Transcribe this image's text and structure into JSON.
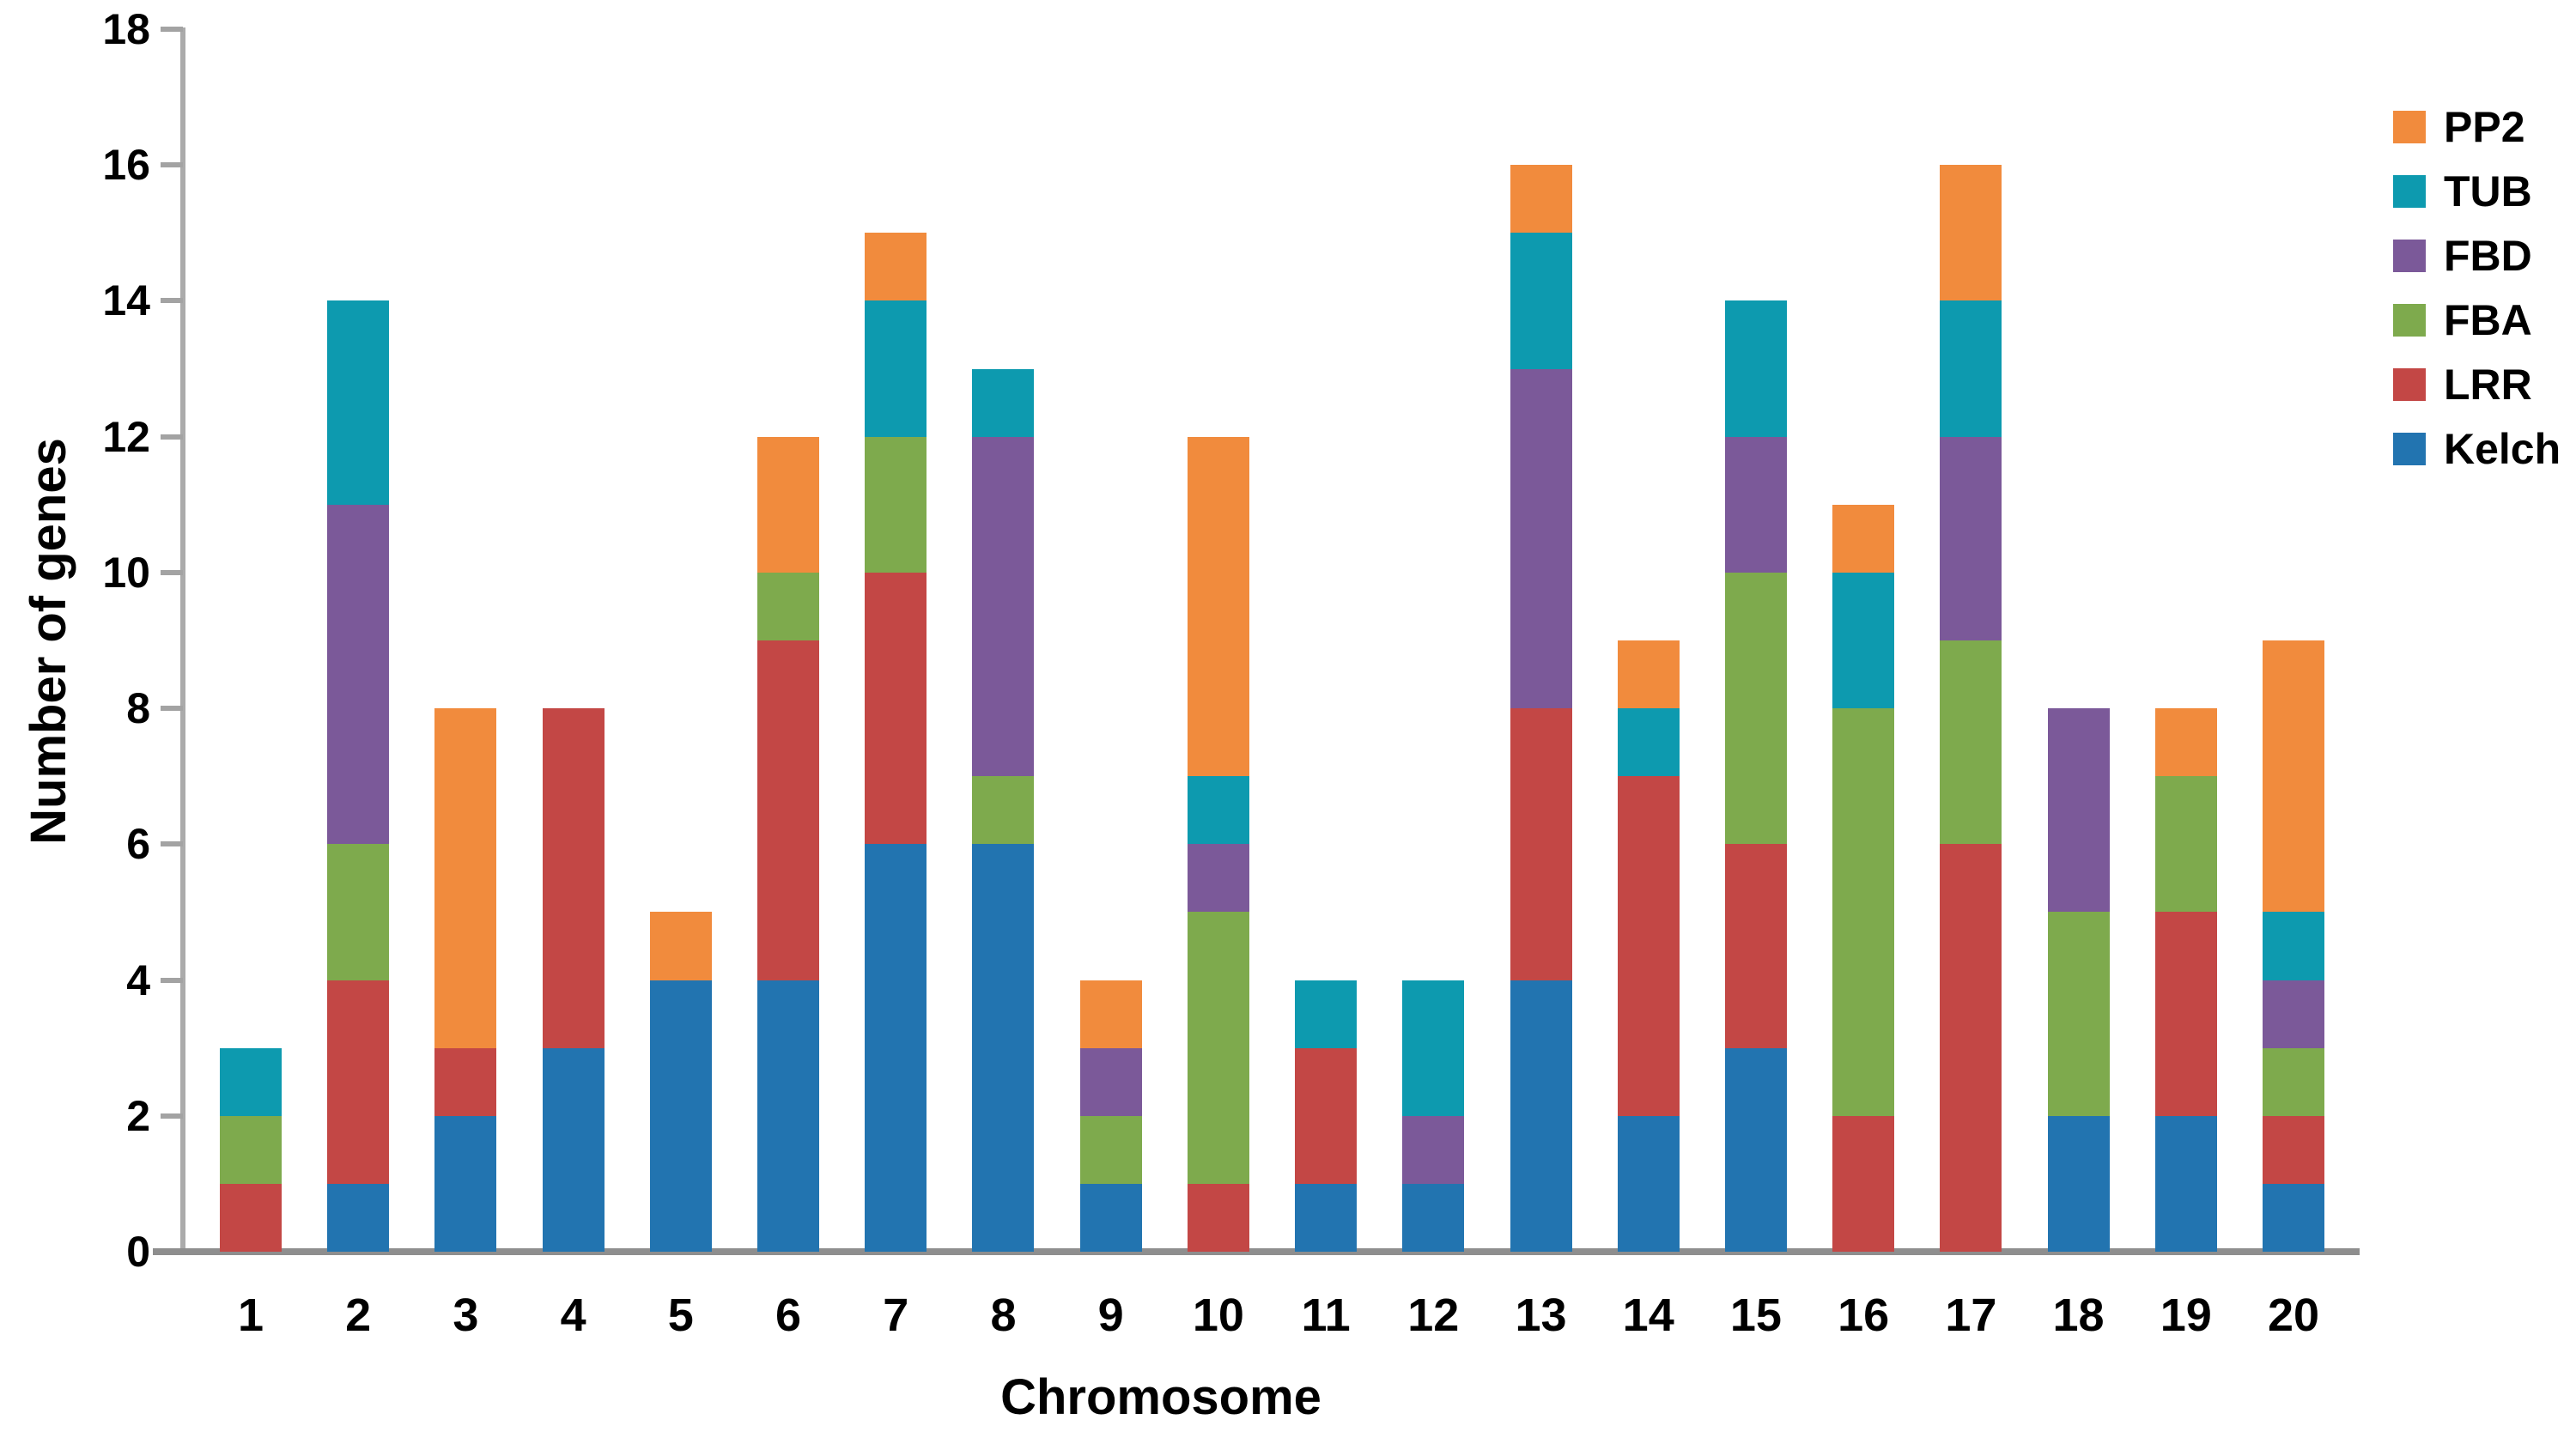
{
  "chart_data": {
    "type": "bar",
    "stacked": true,
    "title": "",
    "xlabel": "Chromosome",
    "ylabel": "Number of genes",
    "ylim": [
      0,
      18
    ],
    "ytick_step": 2,
    "yticks": [
      "0",
      "2",
      "4",
      "6",
      "8",
      "10",
      "12",
      "14",
      "16",
      "18"
    ],
    "grid": false,
    "categories": [
      "1",
      "2",
      "3",
      "4",
      "5",
      "6",
      "7",
      "8",
      "9",
      "10",
      "11",
      "12",
      "13",
      "14",
      "15",
      "16",
      "17",
      "18",
      "19",
      "20"
    ],
    "series": [
      {
        "name": "Kelch",
        "color": "#2274b0",
        "values": [
          0,
          1,
          2,
          3,
          4,
          4,
          6,
          6,
          1,
          0,
          1,
          1,
          4,
          2,
          3,
          0,
          0,
          2,
          2,
          1
        ]
      },
      {
        "name": "LRR",
        "color": "#c34745",
        "values": [
          1,
          3,
          1,
          5,
          0,
          5,
          4,
          0,
          0,
          1,
          2,
          0,
          4,
          5,
          3,
          2,
          6,
          0,
          3,
          1
        ]
      },
      {
        "name": "FBA",
        "color": "#7eaa4d",
        "values": [
          1,
          2,
          0,
          0,
          0,
          1,
          2,
          1,
          1,
          4,
          0,
          0,
          0,
          0,
          4,
          6,
          3,
          3,
          2,
          1
        ]
      },
      {
        "name": "FBD",
        "color": "#7b5999",
        "values": [
          0,
          5,
          0,
          0,
          0,
          0,
          0,
          5,
          1,
          1,
          0,
          1,
          5,
          0,
          2,
          0,
          3,
          3,
          0,
          1
        ]
      },
      {
        "name": "TUB",
        "color": "#0d9aaf",
        "values": [
          1,
          3,
          0,
          0,
          0,
          0,
          2,
          1,
          0,
          1,
          1,
          2,
          2,
          1,
          2,
          2,
          2,
          0,
          0,
          1
        ]
      },
      {
        "name": "PP2",
        "color": "#f18b3d",
        "values": [
          0,
          0,
          5,
          0,
          1,
          2,
          1,
          0,
          1,
          5,
          0,
          0,
          1,
          1,
          0,
          1,
          2,
          0,
          1,
          4
        ]
      }
    ],
    "totals": [
      3,
      14,
      8,
      8,
      5,
      12,
      15,
      13,
      4,
      12,
      4,
      4,
      16,
      9,
      14,
      11,
      16,
      8,
      8,
      9
    ],
    "legend": {
      "position": "right",
      "items_top_to_bottom": [
        "PP2",
        "TUB",
        "FBD",
        "FBA",
        "LRR",
        "Kelch"
      ]
    },
    "colors": {
      "axis_line": "#ababab",
      "baseline": "#8e8e8e",
      "text": "#000000"
    }
  }
}
